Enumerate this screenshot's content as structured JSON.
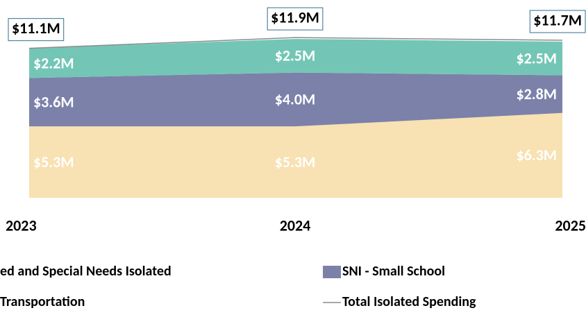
{
  "chart_data": {
    "type": "stacked_area",
    "categories": [
      "2023",
      "2024",
      "2025"
    ],
    "series": [
      {
        "name": "ed and Special Needs Isolated",
        "color": "#f8e1b2",
        "values": [
          5.3,
          5.3,
          6.3
        ],
        "value_labels": [
          "$5.3M",
          "$5.3M",
          "$6.3M"
        ]
      },
      {
        "name": "SNI - Small School",
        "color": "#7c81a9",
        "values": [
          3.6,
          4.0,
          2.8
        ],
        "value_labels": [
          "$3.6M",
          "$4.0M",
          "$2.8M"
        ]
      },
      {
        "name": "Transportation",
        "color": "#73c6b6",
        "values": [
          2.2,
          2.5,
          2.5
        ],
        "value_labels": [
          "$2.2M",
          "$2.5M",
          "$2.5M"
        ]
      }
    ],
    "total": {
      "name": "Total Isolated Spending",
      "color": "#8c8c8c",
      "values": [
        11.1,
        11.9,
        11.7
      ],
      "value_labels": [
        "$11.1M",
        "$11.9M",
        "$11.7M"
      ]
    }
  }
}
